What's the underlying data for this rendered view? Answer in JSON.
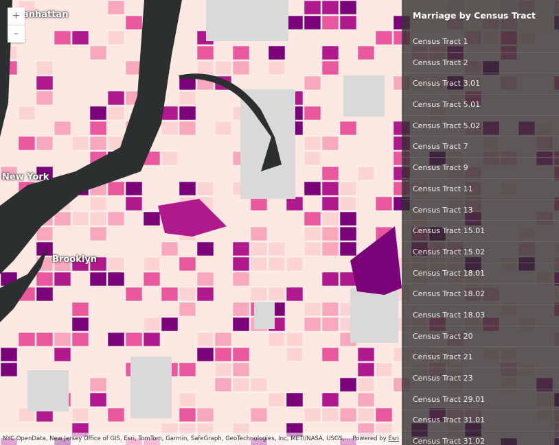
{
  "map": {
    "labels": [
      "Manhattan",
      "New York",
      "Brooklyn"
    ],
    "colors": {
      "land": "#fde8e2",
      "water": "#2b2f2f",
      "park": "#d9d9d9",
      "c1": "#fcd3d3",
      "c2": "#f7a8bd",
      "c3": "#e9589c",
      "c4": "#b0198c",
      "c5": "#7a0177"
    }
  },
  "zoom": {
    "in": "+",
    "out": "–"
  },
  "panel": {
    "title": "Marriage by Census Tract",
    "items": [
      "Census Tract 1",
      "Census Tract 2",
      "Census Tract 3.01",
      "Census Tract 5.01",
      "Census Tract 5.02",
      "Census Tract 7",
      "Census Tract 9",
      "Census Tract 11",
      "Census Tract 13",
      "Census Tract 15.01",
      "Census Tract 15.02",
      "Census Tract 18.01",
      "Census Tract 18.02",
      "Census Tract 18.03",
      "Census Tract 20",
      "Census Tract 21",
      "Census Tract 23",
      "Census Tract 29.01",
      "Census Tract 31.01",
      "Census Tract 31.02"
    ]
  },
  "attribution": {
    "text": "NYC OpenData, New Jersey Office of GIS, Esri, TomTom, Garmin, SafeGraph, GeoTechnologies, Inc, METI/NASA, USGS,...",
    "powered": "Powered by ",
    "esri": "Esri"
  }
}
